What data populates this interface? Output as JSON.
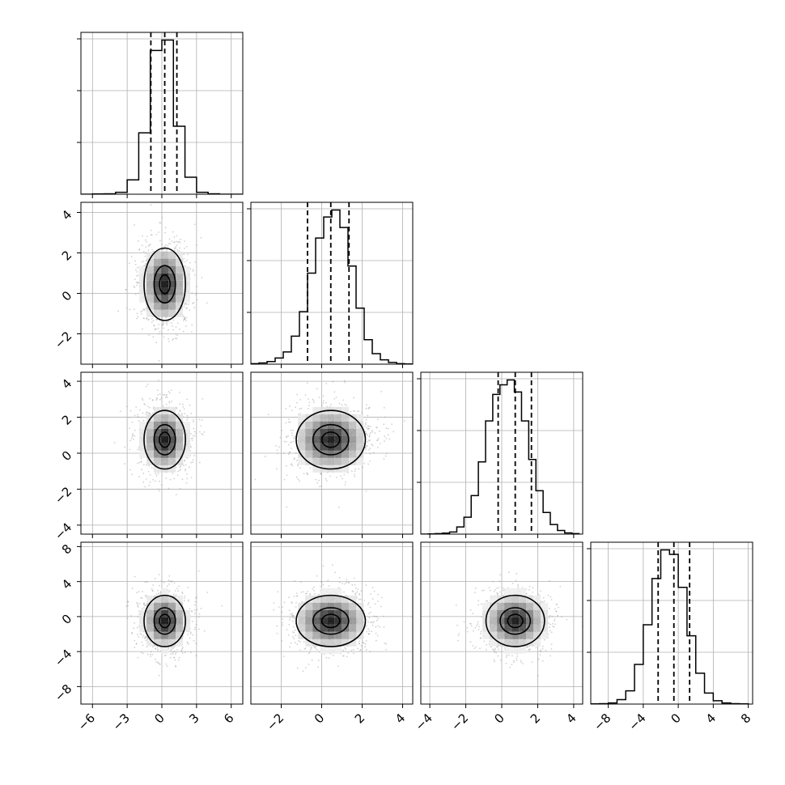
{
  "chart_data": {
    "type": "corner",
    "grid": true,
    "parameters": [
      {
        "range": [
          -7,
          7
        ],
        "ticks": [
          -6,
          -3,
          0,
          3,
          6
        ],
        "tick_labels": [
          "−6",
          "−3",
          "0",
          "3",
          "6"
        ],
        "quantiles": [
          -0.95,
          0.25,
          1.3
        ],
        "hist_x": [
          -6.5,
          -5.5,
          -4.5,
          -3.5,
          -2.5,
          -1.5,
          -0.5,
          0.5,
          1.5,
          2.5,
          3.5,
          4.5,
          5.5,
          6.5
        ],
        "hist_y": [
          0,
          2,
          3,
          15,
          110,
          470,
          1100,
          1180,
          520,
          130,
          15,
          3,
          0,
          0
        ]
      },
      {
        "range": [
          -3.5,
          4.5
        ],
        "ticks": [
          -2,
          0,
          2,
          4
        ],
        "tick_labels": [
          "−2",
          "0",
          "2",
          "4"
        ],
        "quantiles": [
          -0.7,
          0.45,
          1.35
        ],
        "hist_x": [
          -3.3,
          -2.9,
          -2.5,
          -2.1,
          -1.7,
          -1.3,
          -0.9,
          -0.5,
          -0.1,
          0.3,
          0.7,
          1.1,
          1.5,
          1.9,
          2.3,
          2.7,
          3.1,
          3.5,
          3.9,
          4.3
        ],
        "hist_y": [
          3,
          7,
          15,
          35,
          70,
          160,
          300,
          520,
          720,
          840,
          880,
          780,
          560,
          320,
          140,
          60,
          25,
          10,
          3,
          1
        ]
      },
      {
        "range": [
          -4.5,
          4.5
        ],
        "ticks": [
          -4,
          -2,
          0,
          2,
          4
        ],
        "tick_labels": [
          "−4",
          "−2",
          "0",
          "2",
          "4"
        ],
        "quantiles": [
          -0.2,
          0.75,
          1.65
        ],
        "hist_x": [
          -4.3,
          -3.9,
          -3.5,
          -3.1,
          -2.7,
          -2.3,
          -1.9,
          -1.5,
          -1.1,
          -0.7,
          -0.3,
          0.1,
          0.5,
          0.9,
          1.3,
          1.7,
          2.1,
          2.5,
          2.9,
          3.3,
          3.7,
          4.1
        ],
        "hist_y": [
          0,
          1,
          2,
          4,
          9,
          30,
          70,
          160,
          300,
          470,
          580,
          620,
          640,
          590,
          470,
          310,
          180,
          90,
          40,
          15,
          5,
          2
        ]
      },
      {
        "range": [
          -10,
          8.5
        ],
        "ticks": [
          -8,
          -4,
          0,
          4,
          8
        ],
        "tick_labels": [
          "−8",
          "−4",
          "0",
          "4",
          "8"
        ],
        "quantiles": [
          -2.3,
          -0.5,
          1.3
        ],
        "hist_x": [
          -9.5,
          -8.5,
          -7.5,
          -6.5,
          -5.5,
          -4.5,
          -3.5,
          -2.5,
          -1.5,
          -0.5,
          0.5,
          1.5,
          2.5,
          3.5,
          4.5,
          5.5,
          6.5,
          7.5
        ],
        "hist_y": [
          1,
          2,
          5,
          20,
          60,
          180,
          360,
          570,
          700,
          680,
          530,
          310,
          140,
          50,
          15,
          5,
          2,
          1
        ]
      }
    ],
    "pairs": [
      {
        "row": 1,
        "col": 0,
        "x_mean": 0.25,
        "y_mean": 0.45,
        "x_sd": 1.1,
        "y_sd": 1.1,
        "contour_levels": [
          [
            0.15,
            0.4
          ],
          [
            0.45,
            0.8
          ],
          [
            0.85,
            1.55
          ]
        ]
      },
      {
        "row": 2,
        "col": 0,
        "x_mean": 0.25,
        "y_mean": 0.75,
        "x_sd": 1.1,
        "y_sd": 1.0,
        "contour_levels": [
          [
            0.15,
            0.4
          ],
          [
            0.45,
            0.8
          ],
          [
            0.85,
            1.55
          ]
        ]
      },
      {
        "row": 2,
        "col": 1,
        "x_mean": 0.45,
        "y_mean": 0.75,
        "x_sd": 1.05,
        "y_sd": 1.0,
        "contour_levels": [
          [
            0.15,
            0.4
          ],
          [
            0.45,
            0.8
          ],
          [
            0.85,
            1.55
          ]
        ]
      },
      {
        "row": 3,
        "col": 0,
        "x_mean": 0.25,
        "y_mean": -0.5,
        "x_sd": 1.1,
        "y_sd": 1.8,
        "contour_levels": [
          [
            0.15,
            0.4
          ],
          [
            0.45,
            0.8
          ],
          [
            0.85,
            1.55
          ]
        ]
      },
      {
        "row": 3,
        "col": 1,
        "x_mean": 0.45,
        "y_mean": -0.5,
        "x_sd": 1.05,
        "y_sd": 1.8,
        "contour_levels": [
          [
            0.15,
            0.4
          ],
          [
            0.45,
            0.8
          ],
          [
            0.85,
            1.55
          ]
        ]
      },
      {
        "row": 3,
        "col": 2,
        "x_mean": 0.75,
        "y_mean": -0.5,
        "x_sd": 1.0,
        "y_sd": 1.8,
        "contour_levels": [
          [
            0.15,
            0.4
          ],
          [
            0.45,
            0.8
          ],
          [
            0.85,
            1.55
          ]
        ]
      }
    ]
  }
}
